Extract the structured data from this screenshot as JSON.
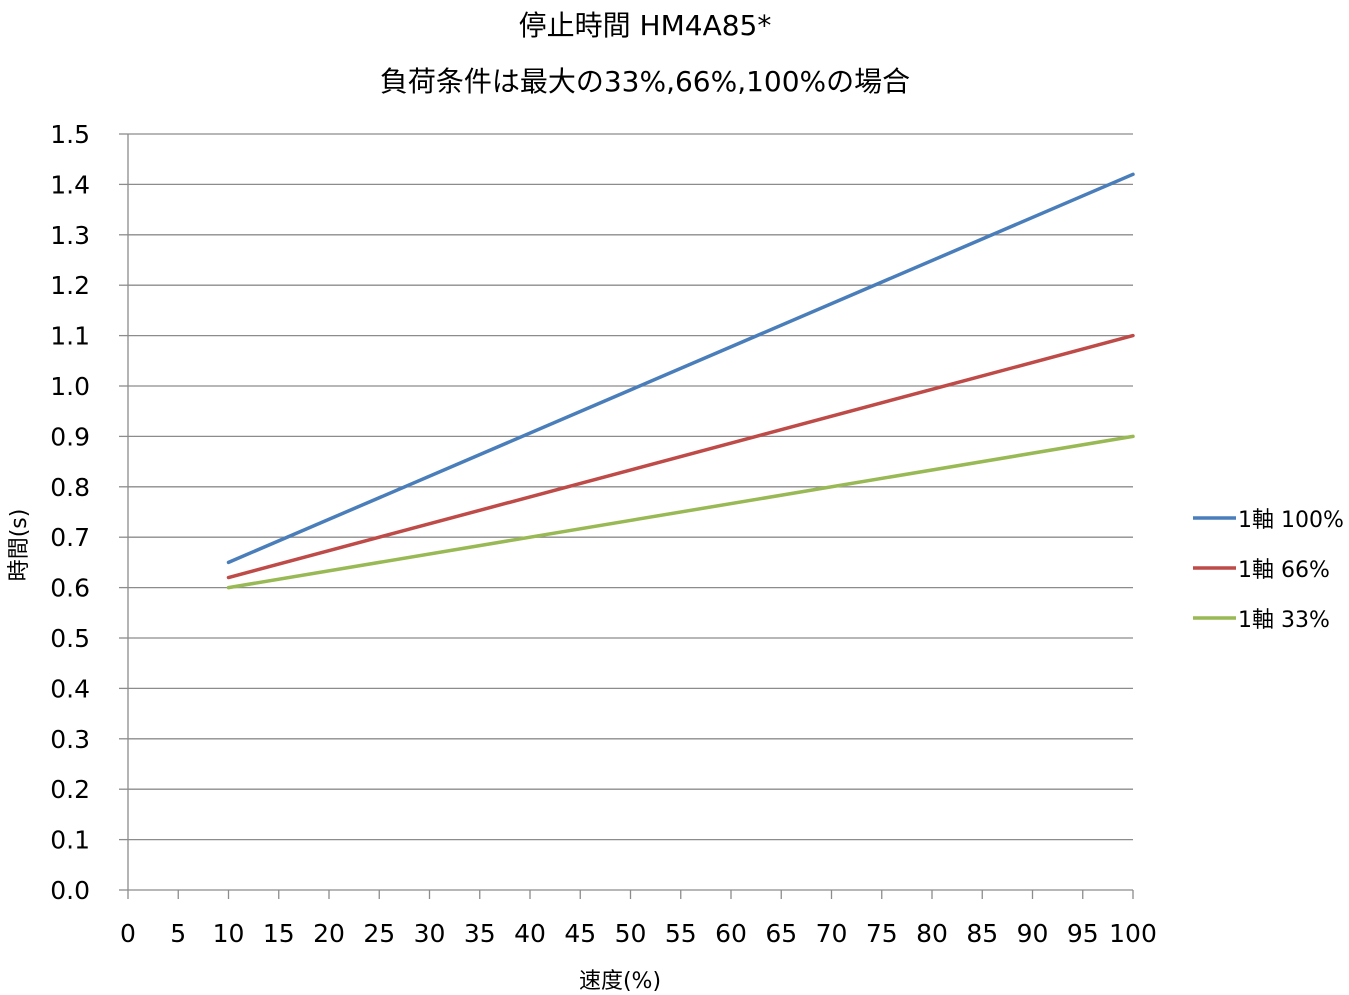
{
  "chart_data": {
    "type": "line",
    "title": "停止時間 HM4A85*",
    "subtitle": "負荷条件は最大の33%,66%,100%の場合",
    "xlabel": "速度(%)",
    "ylabel": "時間(s)",
    "xlim": [
      0,
      100
    ],
    "ylim": [
      0.0,
      1.5
    ],
    "x_ticks": [
      "0",
      "5",
      "10",
      "15",
      "20",
      "25",
      "30",
      "35",
      "40",
      "45",
      "50",
      "55",
      "60",
      "65",
      "70",
      "75",
      "80",
      "85",
      "90",
      "95",
      "100"
    ],
    "y_ticks": [
      "1.5",
      "1.4",
      "1.3",
      "1.2",
      "1.1",
      "1.0",
      "0.9",
      "0.8",
      "0.7",
      "0.6",
      "0.5",
      "0.4",
      "0.3",
      "0.2",
      "0.1",
      "0.0"
    ],
    "grid": "horizontal",
    "legend_position": "right",
    "series": [
      {
        "name": "1軸 100%",
        "color": "#4a7ebb",
        "x": [
          10,
          100
        ],
        "y": [
          0.65,
          1.42
        ]
      },
      {
        "name": "1軸 66%",
        "color": "#be4b48",
        "x": [
          10,
          100
        ],
        "y": [
          0.62,
          1.1
        ]
      },
      {
        "name": "1軸 33%",
        "color": "#98b954",
        "x": [
          10,
          100
        ],
        "y": [
          0.6,
          0.9
        ]
      }
    ]
  }
}
